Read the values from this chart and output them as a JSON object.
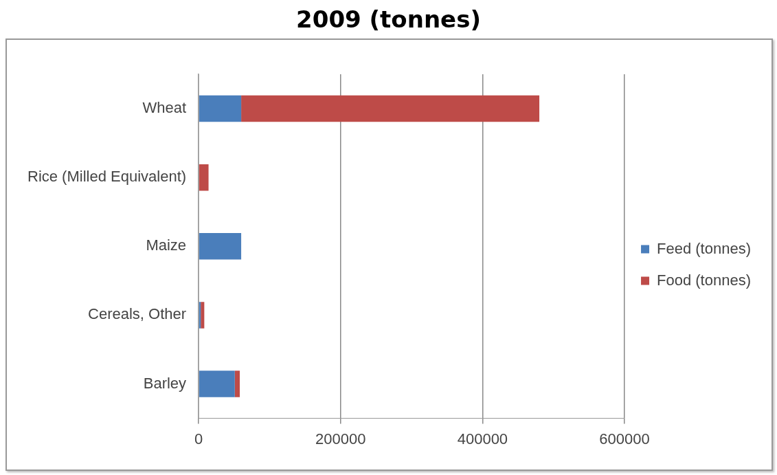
{
  "chart_data": {
    "type": "bar",
    "title": "2009 (tonnes)",
    "orientation": "horizontal",
    "stacked": true,
    "categories": [
      "Wheat",
      "Rice (Milled Equivalent)",
      "Maize",
      "Cereals, Other",
      "Barley"
    ],
    "series": [
      {
        "name": "Feed (tonnes)",
        "color": "#4a7ebb",
        "values": [
          60000,
          0,
          60000,
          3000,
          51000
        ]
      },
      {
        "name": "Food (tonnes)",
        "color": "#be4b48",
        "values": [
          420000,
          14000,
          0,
          5000,
          7000
        ]
      }
    ],
    "xlim": [
      0,
      600000
    ],
    "xticks": [
      0,
      200000,
      400000,
      600000
    ],
    "grid": "x",
    "legend": "right"
  }
}
